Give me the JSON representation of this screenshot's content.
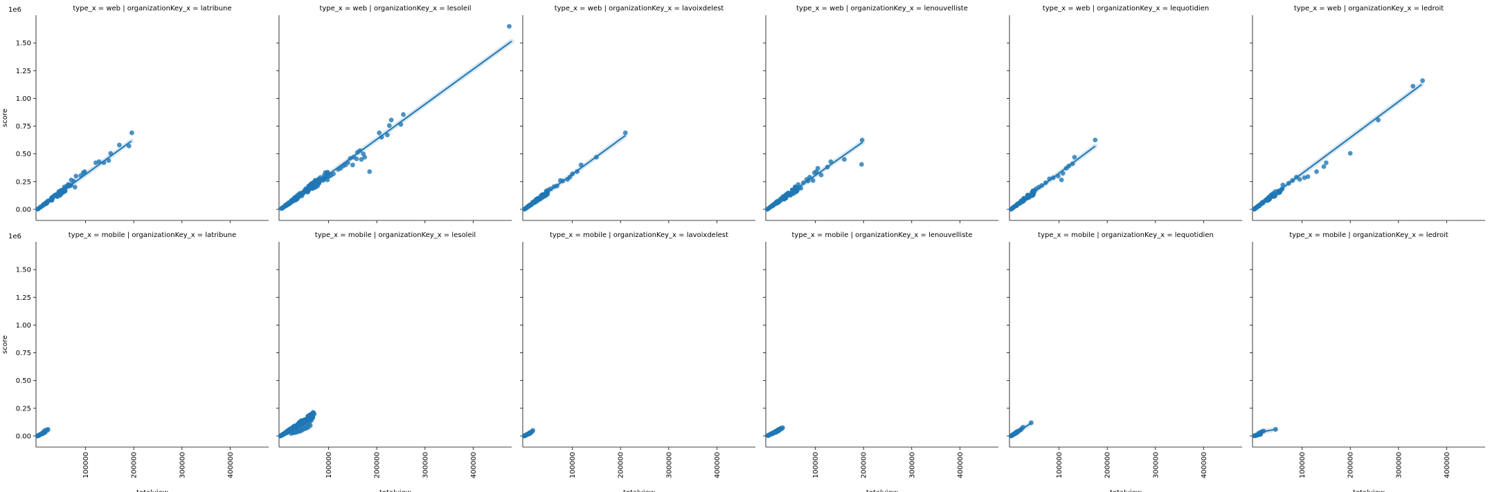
{
  "chart_data": {
    "type": "scatter",
    "layout": "facet-grid",
    "row_variable": "type_x",
    "col_variable": "organizationKey_x",
    "rows": [
      "web",
      "mobile"
    ],
    "cols": [
      "latribune",
      "lesoleil",
      "lavoixdelest",
      "lenouvelliste",
      "lequotidien",
      "ledroit"
    ],
    "xlabel": "totalview",
    "ylabel": "score",
    "xlim": [
      -3000,
      480000
    ],
    "ylim": [
      -100000,
      1750000
    ],
    "xticks": [
      100000,
      200000,
      300000,
      400000
    ],
    "yticks": [
      0,
      250000,
      500000,
      750000,
      1000000,
      1250000,
      1500000
    ],
    "ytick_labels": [
      "0.00",
      "0.25",
      "0.50",
      "0.75",
      "1.00",
      "1.25",
      "1.50"
    ],
    "y_offset_label": "1e6",
    "color": "#1f77b4",
    "panels": [
      {
        "row": "web",
        "col": "latribune",
        "title": "type_x = web | organizationKey_x = latribune",
        "fit": [
          [
            0,
            0
          ],
          [
            195000,
            615000
          ]
        ],
        "points": [
          [
            170000,
            580000
          ],
          [
            190000,
            570000
          ],
          [
            196000,
            690000
          ],
          [
            152000,
            505000
          ],
          [
            148000,
            440000
          ],
          [
            138000,
            420000
          ],
          [
            128000,
            430000
          ],
          [
            121000,
            420000
          ],
          [
            98000,
            340000
          ],
          [
            95000,
            330000
          ],
          [
            90000,
            305000
          ],
          [
            80000,
            300000
          ],
          [
            78000,
            200000
          ],
          [
            75000,
            255000
          ],
          [
            70000,
            265000
          ],
          [
            64000,
            215000
          ]
        ],
        "cloud": {
          "x_max": 70000,
          "count": 60
        }
      },
      {
        "row": "web",
        "col": "lesoleil",
        "title": "type_x = web | organizationKey_x = lesoleil",
        "fit": [
          [
            0,
            0
          ],
          [
            480000,
            1515000
          ]
        ],
        "points": [
          [
            475000,
            1650000
          ],
          [
            255000,
            855000
          ],
          [
            250000,
            765000
          ],
          [
            230000,
            805000
          ],
          [
            226000,
            755000
          ],
          [
            222000,
            670000
          ],
          [
            210000,
            650000
          ],
          [
            205000,
            690000
          ],
          [
            185000,
            340000
          ],
          [
            172000,
            500000
          ],
          [
            165000,
            530000
          ],
          [
            160000,
            515000
          ],
          [
            152000,
            470000
          ],
          [
            145000,
            460000
          ],
          [
            140000,
            420000
          ],
          [
            135000,
            400000
          ],
          [
            130000,
            390000
          ],
          [
            125000,
            370000
          ],
          [
            120000,
            360000
          ],
          [
            110000,
            320000
          ],
          [
            105000,
            305000
          ],
          [
            100000,
            295000
          ],
          [
            175000,
            470000
          ],
          [
            168000,
            450000
          ],
          [
            158000,
            455000
          ],
          [
            150000,
            400000
          ]
        ],
        "cloud": {
          "x_max": 100000,
          "count": 120
        }
      },
      {
        "row": "web",
        "col": "lavoixdelest",
        "title": "type_x = web | organizationKey_x = lavoixdelest",
        "fit": [
          [
            0,
            0
          ],
          [
            210000,
            665000
          ]
        ],
        "points": [
          [
            210000,
            690000
          ],
          [
            150000,
            470000
          ],
          [
            118000,
            400000
          ],
          [
            110000,
            340000
          ],
          [
            100000,
            320000
          ],
          [
            95000,
            290000
          ],
          [
            90000,
            270000
          ],
          [
            80000,
            255000
          ],
          [
            75000,
            260000
          ],
          [
            68000,
            210000
          ],
          [
            62000,
            205000
          ],
          [
            55000,
            185000
          ],
          [
            50000,
            175000
          ]
        ],
        "cloud": {
          "x_max": 50000,
          "count": 60
        }
      },
      {
        "row": "web",
        "col": "lenouvelliste",
        "title": "type_x = web | organizationKey_x = lenouvelliste",
        "fit": [
          [
            0,
            0
          ],
          [
            198000,
            605000
          ]
        ],
        "points": [
          [
            197000,
            625000
          ],
          [
            196000,
            405000
          ],
          [
            160000,
            450000
          ],
          [
            132000,
            430000
          ],
          [
            125000,
            380000
          ],
          [
            112000,
            310000
          ],
          [
            105000,
            370000
          ],
          [
            102000,
            340000
          ],
          [
            98000,
            330000
          ],
          [
            95000,
            260000
          ],
          [
            88000,
            290000
          ],
          [
            85000,
            255000
          ],
          [
            82000,
            270000
          ],
          [
            75000,
            240000
          ],
          [
            70000,
            190000
          ],
          [
            65000,
            190000
          ]
        ],
        "cloud": {
          "x_max": 65000,
          "count": 60
        }
      },
      {
        "row": "web",
        "col": "lequotidien",
        "title": "type_x = web | organizationKey_x = lequotidien",
        "fit": [
          [
            0,
            0
          ],
          [
            175000,
            570000
          ]
        ],
        "points": [
          [
            175000,
            625000
          ],
          [
            132000,
            470000
          ],
          [
            128000,
            410000
          ],
          [
            120000,
            390000
          ],
          [
            115000,
            370000
          ],
          [
            108000,
            325000
          ],
          [
            105000,
            265000
          ],
          [
            98000,
            300000
          ],
          [
            88000,
            285000
          ],
          [
            80000,
            275000
          ],
          [
            72000,
            240000
          ],
          [
            64000,
            215000
          ],
          [
            58000,
            200000
          ],
          [
            52000,
            185000
          ]
        ],
        "cloud": {
          "x_max": 50000,
          "count": 60
        }
      },
      {
        "row": "web",
        "col": "ledroit",
        "title": "type_x = web | organizationKey_x = ledroit",
        "fit": [
          [
            0,
            0
          ],
          [
            348000,
            1125000
          ]
        ],
        "points": [
          [
            350000,
            1160000
          ],
          [
            330000,
            1110000
          ],
          [
            258000,
            805000
          ],
          [
            200000,
            505000
          ],
          [
            150000,
            420000
          ],
          [
            145000,
            385000
          ],
          [
            130000,
            340000
          ],
          [
            112000,
            295000
          ],
          [
            105000,
            285000
          ],
          [
            95000,
            270000
          ],
          [
            88000,
            290000
          ],
          [
            80000,
            260000
          ],
          [
            72000,
            235000
          ],
          [
            60000,
            220000
          ]
        ],
        "cloud": {
          "x_max": 60000,
          "count": 60
        }
      },
      {
        "row": "mobile",
        "col": "latribune",
        "title": "type_x = mobile | organizationKey_x = latribune",
        "fit": [
          [
            0,
            0
          ],
          [
            22000,
            50000
          ]
        ],
        "points": [
          [
            22000,
            60000
          ],
          [
            20000,
            50000
          ],
          [
            18000,
            55000
          ],
          [
            16000,
            40000
          ],
          [
            14000,
            45000
          ],
          [
            12000,
            30000
          ]
        ],
        "cloud": {
          "x_max": 16000,
          "count": 40
        }
      },
      {
        "row": "mobile",
        "col": "lesoleil",
        "title": "type_x = mobile | organizationKey_x = lesoleil",
        "fit": [
          [
            0,
            0
          ],
          [
            70000,
            195000
          ]
        ],
        "points": [
          [
            70000,
            200000
          ],
          [
            66000,
            190000
          ],
          [
            63000,
            175000
          ],
          [
            60000,
            160000
          ],
          [
            56000,
            150000
          ],
          [
            52000,
            145000
          ],
          [
            48000,
            130000
          ],
          [
            44000,
            115000
          ],
          [
            40000,
            100000
          ],
          [
            36000,
            90000
          ],
          [
            32000,
            75000
          ],
          [
            28000,
            65000
          ],
          [
            24000,
            55000
          ],
          [
            20000,
            45000
          ],
          [
            16000,
            35000
          ],
          [
            12000,
            25000
          ],
          [
            62000,
            95000
          ],
          [
            58000,
            80000
          ],
          [
            54000,
            70000
          ],
          [
            50000,
            65000
          ],
          [
            46000,
            55000
          ],
          [
            42000,
            45000
          ],
          [
            38000,
            40000
          ],
          [
            34000,
            35000
          ],
          [
            30000,
            30000
          ],
          [
            26000,
            28000
          ],
          [
            22000,
            22000
          ],
          [
            67000,
            165000
          ],
          [
            64000,
            140000
          ],
          [
            60000,
            120000
          ],
          [
            55000,
            110000
          ],
          [
            50000,
            100000
          ],
          [
            45000,
            85000
          ],
          [
            40000,
            70000
          ],
          [
            35000,
            60000
          ]
        ],
        "cloud": {
          "x_max": 70000,
          "count": 160
        }
      },
      {
        "row": "mobile",
        "col": "lavoixdelest",
        "title": "type_x = mobile | organizationKey_x = lavoixdelest",
        "fit": [
          [
            0,
            0
          ],
          [
            18000,
            40000
          ]
        ],
        "points": [
          [
            18000,
            50000
          ],
          [
            16000,
            40000
          ],
          [
            15000,
            35000
          ],
          [
            13000,
            30000
          ],
          [
            11000,
            25000
          ]
        ],
        "cloud": {
          "x_max": 14000,
          "count": 30
        }
      },
      {
        "row": "mobile",
        "col": "lenouvelliste",
        "title": "type_x = mobile | organizationKey_x = lenouvelliste",
        "fit": [
          [
            0,
            0
          ],
          [
            32000,
            70000
          ]
        ],
        "points": [
          [
            32000,
            75000
          ],
          [
            30000,
            65000
          ],
          [
            28000,
            70000
          ],
          [
            26000,
            55000
          ],
          [
            24000,
            60000
          ],
          [
            22000,
            50000
          ],
          [
            20000,
            45000
          ],
          [
            18000,
            40000
          ]
        ],
        "cloud": {
          "x_max": 24000,
          "count": 50
        }
      },
      {
        "row": "mobile",
        "col": "lequotidien",
        "title": "type_x = mobile | organizationKey_x = lequotidien",
        "fit": [
          [
            0,
            0
          ],
          [
            42000,
            115000
          ]
        ],
        "points": [
          [
            42000,
            120000
          ],
          [
            25000,
            80000
          ],
          [
            22000,
            65000
          ],
          [
            20000,
            55000
          ],
          [
            18000,
            50000
          ],
          [
            16000,
            45000
          ],
          [
            14000,
            40000
          ]
        ],
        "cloud": {
          "x_max": 14000,
          "count": 40
        }
      },
      {
        "row": "mobile",
        "col": "ledroit",
        "title": "type_x = mobile | organizationKey_x = ledroit",
        "fit": [
          [
            0,
            0
          ],
          [
            20000,
            40000
          ],
          [
            45000,
            60000
          ]
        ],
        "points": [
          [
            45000,
            60000
          ],
          [
            20000,
            45000
          ],
          [
            17000,
            40000
          ],
          [
            15000,
            35000
          ],
          [
            12000,
            30000
          ],
          [
            10000,
            25000
          ]
        ],
        "cloud": {
          "x_max": 14000,
          "count": 30
        }
      }
    ]
  }
}
